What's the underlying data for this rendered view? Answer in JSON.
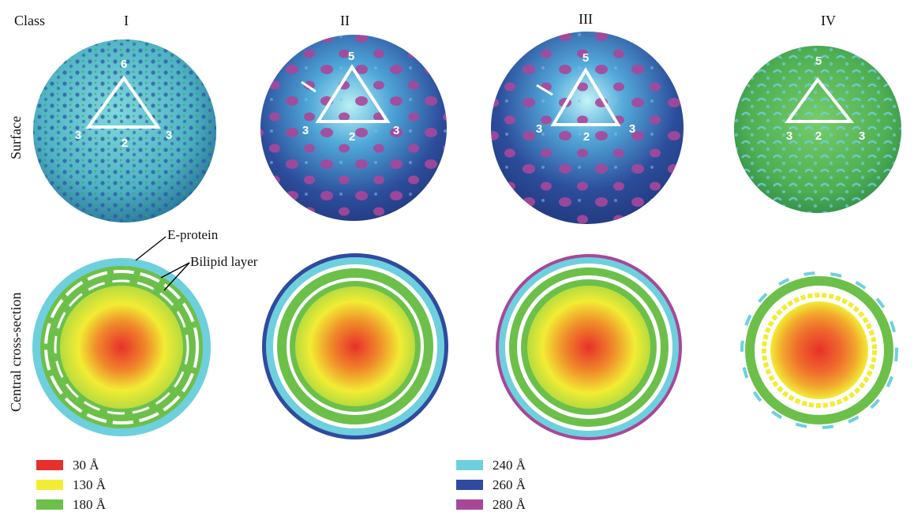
{
  "header": {
    "class_label": "Class"
  },
  "classes": [
    "I",
    "II",
    "III",
    "IV"
  ],
  "rows": {
    "surface": "Surface",
    "cross_section": "Central cross-section"
  },
  "triangle_numbers": [
    {
      "top": "6",
      "left": "3",
      "bottom": "2",
      "right": "3"
    },
    {
      "top": "5",
      "left": "3",
      "bottom": "2",
      "right": "3"
    },
    {
      "top": "5",
      "left": "3",
      "bottom": "2",
      "right": "3"
    },
    {
      "top": "5",
      "left": "3",
      "bottom": "2",
      "right": "3"
    }
  ],
  "annotations": {
    "e_protein": "E-protein",
    "bilipid": "Bilipid layer"
  },
  "legend": {
    "left": [
      {
        "color": "#e8302b",
        "label": "30 Å"
      },
      {
        "color": "#f2ec34",
        "label": "130 Å"
      },
      {
        "color": "#6cc04a",
        "label": "180 Å"
      }
    ],
    "right": [
      {
        "color": "#6ed0dc",
        "label": "240 Å"
      },
      {
        "color": "#2f4a9e",
        "label": "260 Å"
      },
      {
        "color": "#a8479a",
        "label": "280 Å"
      }
    ]
  }
}
